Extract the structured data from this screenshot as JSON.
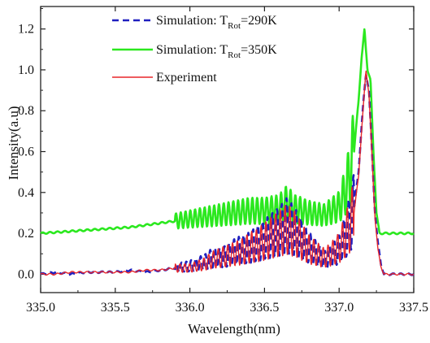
{
  "chart_data": {
    "type": "line",
    "xlabel": "Wavelength(nm)",
    "ylabel": "Intensity(a.u)",
    "xlim": [
      335.0,
      337.5
    ],
    "ylim": [
      -0.09,
      1.31
    ],
    "x_ticks": [
      335.0,
      335.5,
      336.0,
      336.5,
      337.0,
      337.5
    ],
    "x_tick_labels": [
      "335.0",
      "335.5",
      "336.0",
      "336.5",
      "337.0",
      "337.5"
    ],
    "y_ticks": [
      0.0,
      0.2,
      0.4,
      0.6,
      0.8,
      1.0,
      1.2
    ],
    "y_tick_labels": [
      "0.0",
      "0.2",
      "0.4",
      "0.6",
      "0.8",
      "1.0",
      "1.2"
    ],
    "grid": false,
    "legend_position": "top-left",
    "series": [
      {
        "name_prefix": "Simulation: T",
        "name_subscript": "Rot",
        "name_suffix": "=290K",
        "color": "#1f1fbf",
        "dash": true,
        "x": [
          335.0,
          335.1,
          335.2,
          335.3,
          335.4,
          335.5,
          335.6,
          335.7,
          335.8,
          335.9,
          336.0,
          336.05,
          336.1,
          336.15,
          336.2,
          336.25,
          336.3,
          336.35,
          336.4,
          336.45,
          336.5,
          336.55,
          336.6,
          336.65,
          336.7,
          336.75,
          336.8,
          336.85,
          336.9,
          336.95,
          337.0,
          337.05,
          337.1,
          337.13,
          337.16,
          337.18,
          337.2,
          337.22,
          337.24,
          337.26,
          337.28,
          337.3,
          337.4,
          337.5
        ],
        "y": [
          0.0,
          0.01,
          0.0,
          0.01,
          0.01,
          0.01,
          0.02,
          0.01,
          0.02,
          0.03,
          0.04,
          0.05,
          0.06,
          0.08,
          0.08,
          0.09,
          0.11,
          0.12,
          0.13,
          0.15,
          0.17,
          0.19,
          0.21,
          0.24,
          0.21,
          0.17,
          0.13,
          0.1,
          0.07,
          0.09,
          0.12,
          0.2,
          0.32,
          0.5,
          0.82,
          0.98,
          0.9,
          0.6,
          0.3,
          0.15,
          0.05,
          0.0,
          0.0,
          0.0
        ],
        "ripple": 0.06
      },
      {
        "name_prefix": "Simulation: T",
        "name_subscript": "Rot",
        "name_suffix": "=350K",
        "color": "#2be81f",
        "dash": false,
        "x": [
          335.0,
          335.1,
          335.2,
          335.3,
          335.4,
          335.5,
          335.6,
          335.7,
          335.8,
          335.9,
          336.0,
          336.1,
          336.2,
          336.3,
          336.4,
          336.5,
          336.6,
          336.65,
          336.7,
          336.8,
          336.9,
          337.0,
          337.05,
          337.1,
          337.13,
          337.15,
          337.17,
          337.19,
          337.21,
          337.23,
          337.25,
          337.27,
          337.3,
          337.4,
          337.5
        ],
        "y": [
          0.2,
          0.205,
          0.21,
          0.215,
          0.22,
          0.225,
          0.23,
          0.24,
          0.25,
          0.26,
          0.27,
          0.28,
          0.29,
          0.3,
          0.31,
          0.31,
          0.32,
          0.35,
          0.32,
          0.3,
          0.29,
          0.33,
          0.42,
          0.6,
          0.85,
          1.05,
          1.2,
          1.0,
          0.95,
          0.6,
          0.3,
          0.2,
          0.2,
          0.2,
          0.2
        ],
        "ripple": 0.07
      },
      {
        "name": "Experiment",
        "color": "#e8262a",
        "dash": false,
        "x": [
          335.0,
          335.1,
          335.2,
          335.3,
          335.4,
          335.5,
          335.6,
          335.7,
          335.8,
          335.9,
          336.0,
          336.05,
          336.1,
          336.15,
          336.2,
          336.25,
          336.3,
          336.35,
          336.4,
          336.45,
          336.5,
          336.55,
          336.6,
          336.65,
          336.7,
          336.75,
          336.8,
          336.85,
          336.9,
          336.95,
          337.0,
          337.05,
          337.1,
          337.13,
          337.16,
          337.18,
          337.2,
          337.22,
          337.24,
          337.26,
          337.28,
          337.3,
          337.4,
          337.5
        ],
        "y": [
          0.0,
          0.0,
          0.01,
          0.01,
          0.01,
          0.01,
          0.01,
          0.02,
          0.02,
          0.03,
          0.03,
          0.04,
          0.05,
          0.07,
          0.08,
          0.09,
          0.1,
          0.11,
          0.13,
          0.14,
          0.16,
          0.18,
          0.2,
          0.22,
          0.2,
          0.16,
          0.12,
          0.1,
          0.08,
          0.1,
          0.13,
          0.2,
          0.3,
          0.48,
          0.8,
          1.0,
          0.88,
          0.58,
          0.28,
          0.12,
          0.04,
          0.0,
          0.0,
          0.0
        ],
        "ripple": 0.05
      }
    ]
  }
}
